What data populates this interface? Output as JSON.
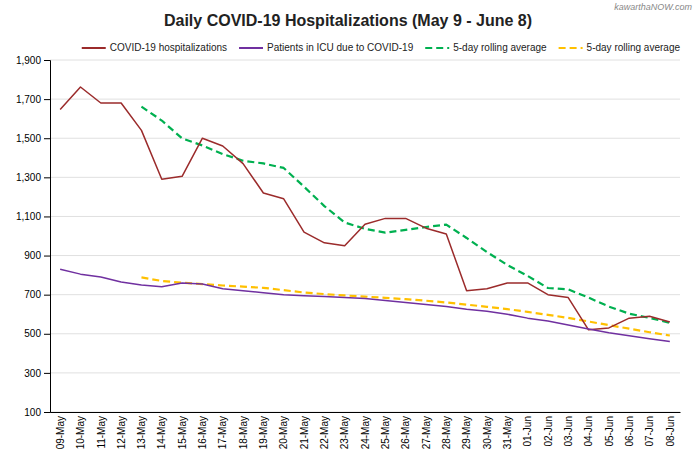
{
  "chart_data": {
    "type": "line",
    "title": "Daily COVID-19 Hospitalizations (May 9 - June 8)",
    "annotations": [
      "kawarthaNOW.com"
    ],
    "categories": [
      "09-May",
      "10-May",
      "11-May",
      "12-May",
      "13-May",
      "14-May",
      "15-May",
      "16-May",
      "17-May",
      "18-May",
      "19-May",
      "20-May",
      "21-May",
      "22-May",
      "23-May",
      "24-May",
      "25-May",
      "26-May",
      "27-May",
      "28-May",
      "29-May",
      "30-May",
      "31-May",
      "01-Jun",
      "02-Jun",
      "03-Jun",
      "04-Jun",
      "05-Jun",
      "06-Jun",
      "07-Jun",
      "08-Jun"
    ],
    "series": [
      {
        "name": "COVID-19 hospitalizations",
        "color": "#9B2B2B",
        "line_style": "solid",
        "values": [
          1647,
          1762,
          1680,
          1680,
          1540,
          1290,
          1305,
          1500,
          1460,
          1370,
          1220,
          1190,
          1020,
          965,
          950,
          1060,
          1090,
          1090,
          1040,
          1010,
          720,
          730,
          760,
          760,
          700,
          685,
          520,
          530,
          580,
          590,
          560
        ]
      },
      {
        "name": "Patients in ICU due to COVID-19",
        "color": "#7030A0",
        "line_style": "solid",
        "values": [
          830,
          805,
          790,
          765,
          750,
          740,
          760,
          755,
          730,
          720,
          710,
          700,
          695,
          690,
          685,
          680,
          670,
          660,
          650,
          640,
          625,
          615,
          600,
          580,
          565,
          545,
          525,
          505,
          490,
          475,
          460
        ]
      },
      {
        "name": "5-day rolling average",
        "color": "#00B050",
        "line_style": "dashed",
        "values": [
          null,
          null,
          null,
          null,
          1661.8,
          1590.4,
          1499,
          1463,
          1419,
          1385,
          1371,
          1348,
          1252,
          1153,
          1069,
          1037,
          1017,
          1031,
          1046,
          1058,
          990,
          918,
          852,
          796,
          734,
          727,
          685,
          639,
          603,
          581,
          556
        ]
      },
      {
        "name": "5-day rolling average",
        "color": "#FFC000",
        "line_style": "dashed",
        "values": [
          null,
          null,
          null,
          null,
          788,
          770,
          761,
          754,
          747,
          741,
          735,
          723,
          711,
          703,
          696,
          690,
          684,
          677,
          669,
          660,
          649,
          638,
          626,
          612,
          597,
          581,
          563,
          544,
          526,
          508,
          491
        ]
      }
    ],
    "ylim": [
      100,
      1900
    ],
    "yticks": [
      100,
      300,
      500,
      700,
      900,
      {
        "value": 1100,
        "label": "1,100"
      },
      {
        "value": 1300,
        "label": "1,300"
      },
      {
        "value": 1500,
        "label": "1,500"
      },
      {
        "value": 1700,
        "label": "1,700"
      },
      {
        "value": 1900,
        "label": "1,900"
      }
    ],
    "grid": true,
    "legend": "upper right"
  }
}
